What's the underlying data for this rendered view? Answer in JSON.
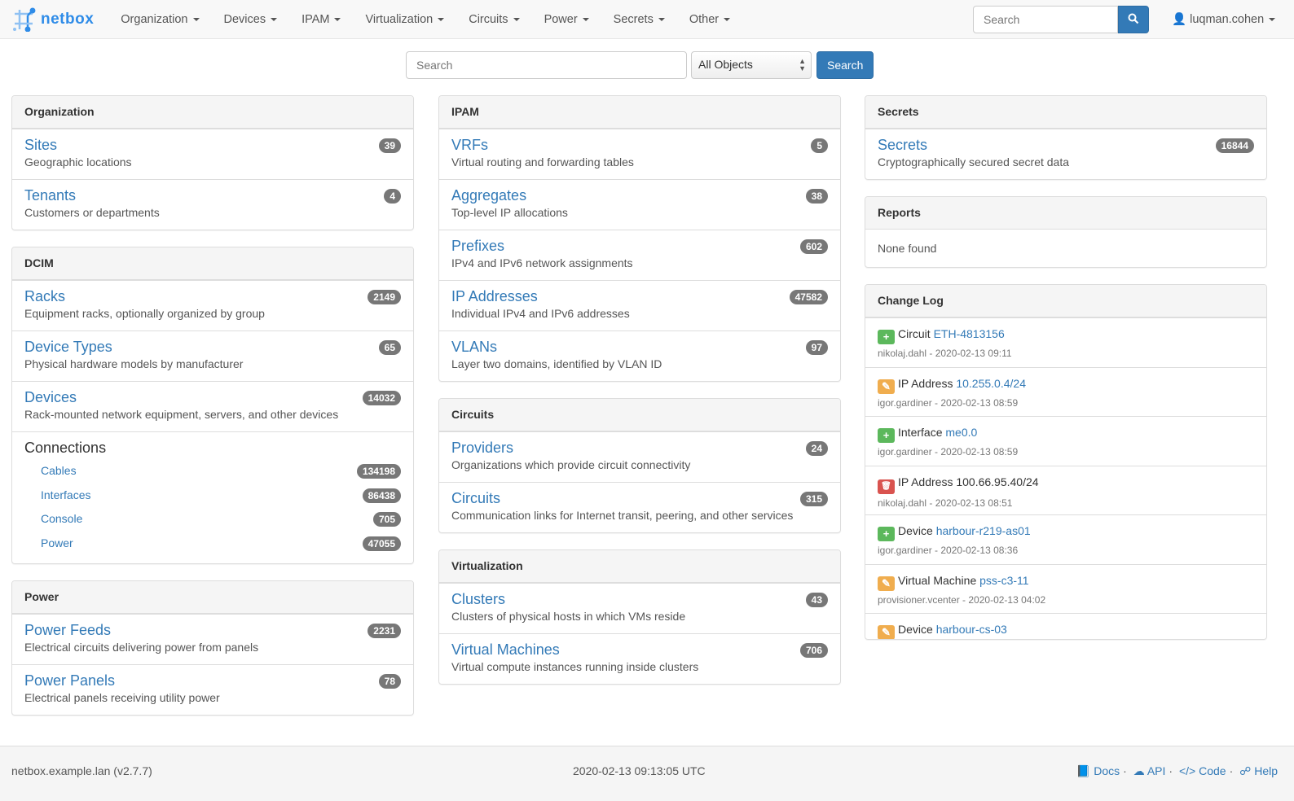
{
  "brand": "netbox",
  "nav": {
    "menus": [
      "Organization",
      "Devices",
      "IPAM",
      "Virtualization",
      "Circuits",
      "Power",
      "Secrets",
      "Other"
    ],
    "search_placeholder": "Search",
    "user": "luqman.cohen"
  },
  "search": {
    "placeholder": "Search",
    "scope": "All Objects",
    "button": "Search"
  },
  "columns": [
    [
      {
        "title": "Organization",
        "items": [
          {
            "label": "Sites",
            "desc": "Geographic locations",
            "count": "39"
          },
          {
            "label": "Tenants",
            "desc": "Customers or departments",
            "count": "4"
          }
        ]
      },
      {
        "title": "DCIM",
        "items": [
          {
            "label": "Racks",
            "desc": "Equipment racks, optionally organized by group",
            "count": "2149"
          },
          {
            "label": "Device Types",
            "desc": "Physical hardware models by manufacturer",
            "count": "65"
          },
          {
            "label": "Devices",
            "desc": "Rack-mounted network equipment, servers, and other devices",
            "count": "14032"
          }
        ],
        "connections": {
          "title": "Connections",
          "items": [
            {
              "label": "Cables",
              "count": "134198"
            },
            {
              "label": "Interfaces",
              "count": "86438"
            },
            {
              "label": "Console",
              "count": "705"
            },
            {
              "label": "Power",
              "count": "47055"
            }
          ]
        }
      },
      {
        "title": "Power",
        "items": [
          {
            "label": "Power Feeds",
            "desc": "Electrical circuits delivering power from panels",
            "count": "2231"
          },
          {
            "label": "Power Panels",
            "desc": "Electrical panels receiving utility power",
            "count": "78"
          }
        ]
      }
    ],
    [
      {
        "title": "IPAM",
        "items": [
          {
            "label": "VRFs",
            "desc": "Virtual routing and forwarding tables",
            "count": "5"
          },
          {
            "label": "Aggregates",
            "desc": "Top-level IP allocations",
            "count": "38"
          },
          {
            "label": "Prefixes",
            "desc": "IPv4 and IPv6 network assignments",
            "count": "602"
          },
          {
            "label": "IP Addresses",
            "desc": "Individual IPv4 and IPv6 addresses",
            "count": "47582"
          },
          {
            "label": "VLANs",
            "desc": "Layer two domains, identified by VLAN ID",
            "count": "97"
          }
        ]
      },
      {
        "title": "Circuits",
        "items": [
          {
            "label": "Providers",
            "desc": "Organizations which provide circuit connectivity",
            "count": "24"
          },
          {
            "label": "Circuits",
            "desc": "Communication links for Internet transit, peering, and other services",
            "count": "315"
          }
        ]
      },
      {
        "title": "Virtualization",
        "items": [
          {
            "label": "Clusters",
            "desc": "Clusters of physical hosts in which VMs reside",
            "count": "43"
          },
          {
            "label": "Virtual Machines",
            "desc": "Virtual compute instances running inside clusters",
            "count": "706"
          }
        ]
      }
    ],
    [
      {
        "title": "Secrets",
        "items": [
          {
            "label": "Secrets",
            "desc": "Cryptographically secured secret data",
            "count": "16844"
          }
        ]
      },
      {
        "title": "Reports",
        "none": "None found"
      }
    ]
  ],
  "changelog": {
    "title": "Change Log",
    "entries": [
      {
        "action": "create",
        "type": "Circuit",
        "object": "ETH-4813156",
        "meta": "nikolaj.dahl - 2020-02-13 09:11"
      },
      {
        "action": "update",
        "type": "IP Address",
        "object": "10.255.0.4/24",
        "meta": "igor.gardiner - 2020-02-13 08:59"
      },
      {
        "action": "create",
        "type": "Interface",
        "object": "me0.0",
        "meta": "igor.gardiner - 2020-02-13 08:59"
      },
      {
        "action": "delete",
        "type": "IP Address",
        "object": "100.66.95.40/24",
        "meta": "nikolaj.dahl - 2020-02-13 08:51"
      },
      {
        "action": "create",
        "type": "Device",
        "object": "harbour-r219-as01",
        "meta": "igor.gardiner - 2020-02-13 08:36"
      },
      {
        "action": "update",
        "type": "Virtual Machine",
        "object": "pss-c3-11",
        "meta": "provisioner.vcenter - 2020-02-13 04:02"
      },
      {
        "action": "update",
        "type": "Device",
        "object": "harbour-cs-03",
        "meta": ""
      }
    ]
  },
  "action_colors": {
    "create": "#5cb85c",
    "update": "#f0ad4e",
    "delete": "#d9534f"
  },
  "footer": {
    "host": "netbox.example.lan (v2.7.7)",
    "time": "2020-02-13 09:13:05 UTC",
    "links": [
      "Docs",
      "API",
      "Code",
      "Help"
    ]
  }
}
